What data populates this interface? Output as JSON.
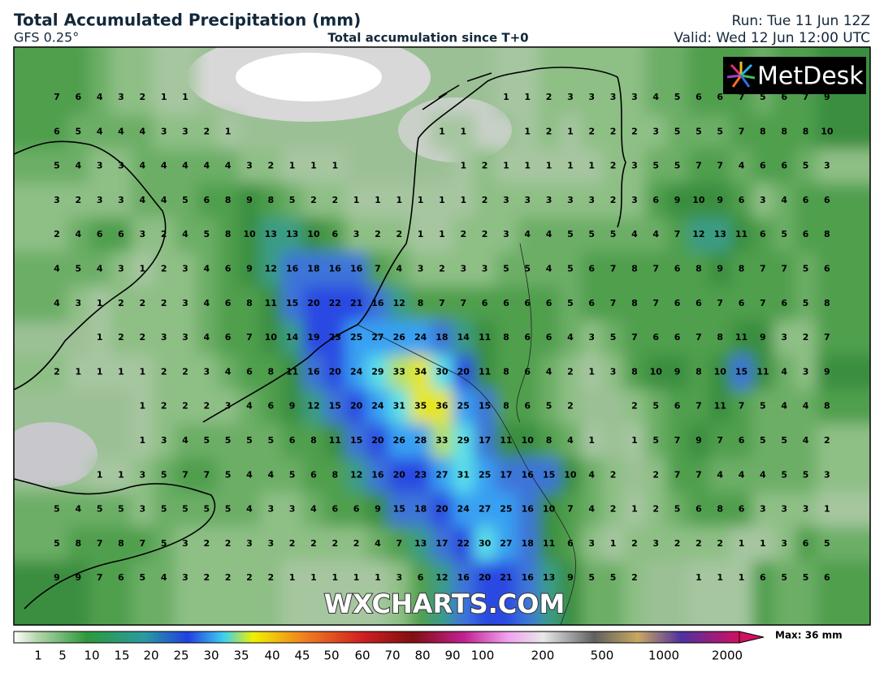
{
  "header": {
    "title": "Total Accumulated Precipitation (mm)",
    "model": "GFS 0.25°",
    "subtitle": "Total accumulation since T+0",
    "run": "Run: Tue 11 Jun 12Z",
    "valid": "Valid: Wed 12 Jun 12:00 UTC"
  },
  "logo": "MetDesk",
  "watermark": "WXCHARTS.COM",
  "map": {
    "grid_values": [
      [
        7,
        6,
        4,
        3,
        2,
        1,
        1,
        null,
        null,
        null,
        null,
        null,
        null,
        null,
        null,
        null,
        null,
        null,
        null,
        null,
        null,
        1,
        1,
        2,
        3,
        3,
        3,
        3,
        4,
        5,
        6,
        6,
        7,
        5,
        6,
        7,
        9
      ],
      [
        6,
        5,
        4,
        4,
        4,
        3,
        3,
        2,
        1,
        null,
        null,
        null,
        null,
        null,
        null,
        null,
        null,
        null,
        1,
        1,
        null,
        null,
        1,
        2,
        1,
        2,
        2,
        2,
        3,
        5,
        5,
        5,
        7,
        8,
        8,
        8,
        10
      ],
      [
        5,
        4,
        3,
        3,
        4,
        4,
        4,
        4,
        4,
        3,
        2,
        1,
        1,
        1,
        null,
        null,
        null,
        null,
        null,
        1,
        2,
        1,
        1,
        1,
        1,
        1,
        2,
        3,
        5,
        5,
        7,
        7,
        4,
        6,
        6,
        5,
        3
      ],
      [
        3,
        2,
        3,
        3,
        4,
        4,
        5,
        6,
        8,
        9,
        8,
        5,
        2,
        2,
        1,
        1,
        1,
        1,
        1,
        1,
        2,
        3,
        3,
        3,
        3,
        3,
        2,
        3,
        6,
        9,
        10,
        9,
        6,
        3,
        4,
        6,
        6
      ],
      [
        2,
        4,
        6,
        6,
        3,
        2,
        4,
        5,
        8,
        10,
        13,
        13,
        10,
        6,
        3,
        2,
        2,
        1,
        1,
        2,
        2,
        3,
        4,
        4,
        5,
        5,
        5,
        4,
        4,
        7,
        12,
        13,
        11,
        6,
        5,
        6,
        8
      ],
      [
        4,
        5,
        4,
        3,
        1,
        2,
        3,
        4,
        6,
        9,
        12,
        16,
        18,
        16,
        16,
        7,
        4,
        3,
        2,
        3,
        3,
        5,
        5,
        4,
        5,
        6,
        7,
        8,
        7,
        6,
        8,
        9,
        8,
        7,
        7,
        5,
        6
      ],
      [
        4,
        3,
        1,
        2,
        2,
        2,
        3,
        4,
        6,
        8,
        11,
        15,
        20,
        22,
        21,
        16,
        12,
        8,
        7,
        7,
        6,
        6,
        6,
        6,
        5,
        6,
        7,
        8,
        7,
        6,
        6,
        7,
        6,
        7,
        6,
        5,
        8
      ],
      [
        null,
        null,
        1,
        2,
        2,
        3,
        3,
        4,
        6,
        7,
        10,
        14,
        19,
        23,
        25,
        27,
        26,
        24,
        18,
        14,
        11,
        8,
        6,
        6,
        4,
        3,
        5,
        7,
        6,
        6,
        7,
        8,
        11,
        9,
        3,
        2,
        7
      ],
      [
        2,
        1,
        1,
        1,
        1,
        2,
        2,
        3,
        4,
        6,
        8,
        11,
        16,
        20,
        24,
        29,
        33,
        34,
        30,
        20,
        11,
        8,
        6,
        4,
        2,
        1,
        3,
        8,
        10,
        9,
        8,
        10,
        15,
        11,
        4,
        3,
        9
      ],
      [
        null,
        null,
        null,
        null,
        1,
        2,
        2,
        2,
        3,
        4,
        6,
        9,
        12,
        15,
        20,
        24,
        31,
        35,
        36,
        25,
        15,
        8,
        6,
        5,
        2,
        null,
        null,
        2,
        5,
        6,
        7,
        11,
        7,
        5,
        4,
        4,
        8
      ],
      [
        null,
        null,
        null,
        null,
        1,
        3,
        4,
        5,
        5,
        5,
        5,
        6,
        8,
        11,
        15,
        20,
        26,
        28,
        33,
        29,
        17,
        11,
        10,
        8,
        4,
        1,
        null,
        1,
        5,
        7,
        9,
        7,
        6,
        5,
        5,
        4,
        2
      ],
      [
        null,
        null,
        1,
        1,
        3,
        5,
        7,
        7,
        5,
        4,
        4,
        5,
        6,
        8,
        12,
        16,
        20,
        23,
        27,
        31,
        25,
        17,
        16,
        15,
        10,
        4,
        2,
        null,
        2,
        7,
        7,
        4,
        4,
        4,
        5,
        5,
        3
      ],
      [
        5,
        4,
        5,
        5,
        3,
        5,
        5,
        5,
        5,
        4,
        3,
        3,
        4,
        6,
        6,
        9,
        15,
        18,
        20,
        24,
        27,
        25,
        16,
        10,
        7,
        4,
        2,
        1,
        2,
        5,
        6,
        8,
        6,
        3,
        3,
        3,
        1
      ],
      [
        5,
        8,
        7,
        8,
        7,
        5,
        3,
        2,
        2,
        3,
        3,
        2,
        2,
        2,
        2,
        4,
        7,
        13,
        17,
        22,
        30,
        27,
        18,
        11,
        6,
        3,
        1,
        2,
        3,
        2,
        2,
        2,
        1,
        1,
        3,
        6,
        5
      ],
      [
        9,
        9,
        7,
        6,
        5,
        4,
        3,
        2,
        2,
        2,
        2,
        1,
        1,
        1,
        1,
        1,
        3,
        6,
        12,
        16,
        20,
        21,
        16,
        13,
        9,
        5,
        5,
        2,
        null,
        null,
        1,
        1,
        1,
        6,
        5,
        5,
        6
      ]
    ]
  },
  "colorbar": {
    "ticks": [
      1,
      5,
      10,
      15,
      20,
      25,
      30,
      35,
      40,
      45,
      50,
      60,
      70,
      80,
      90,
      100,
      200,
      500,
      1000,
      2000
    ],
    "max_label": "Max: 36 mm"
  }
}
